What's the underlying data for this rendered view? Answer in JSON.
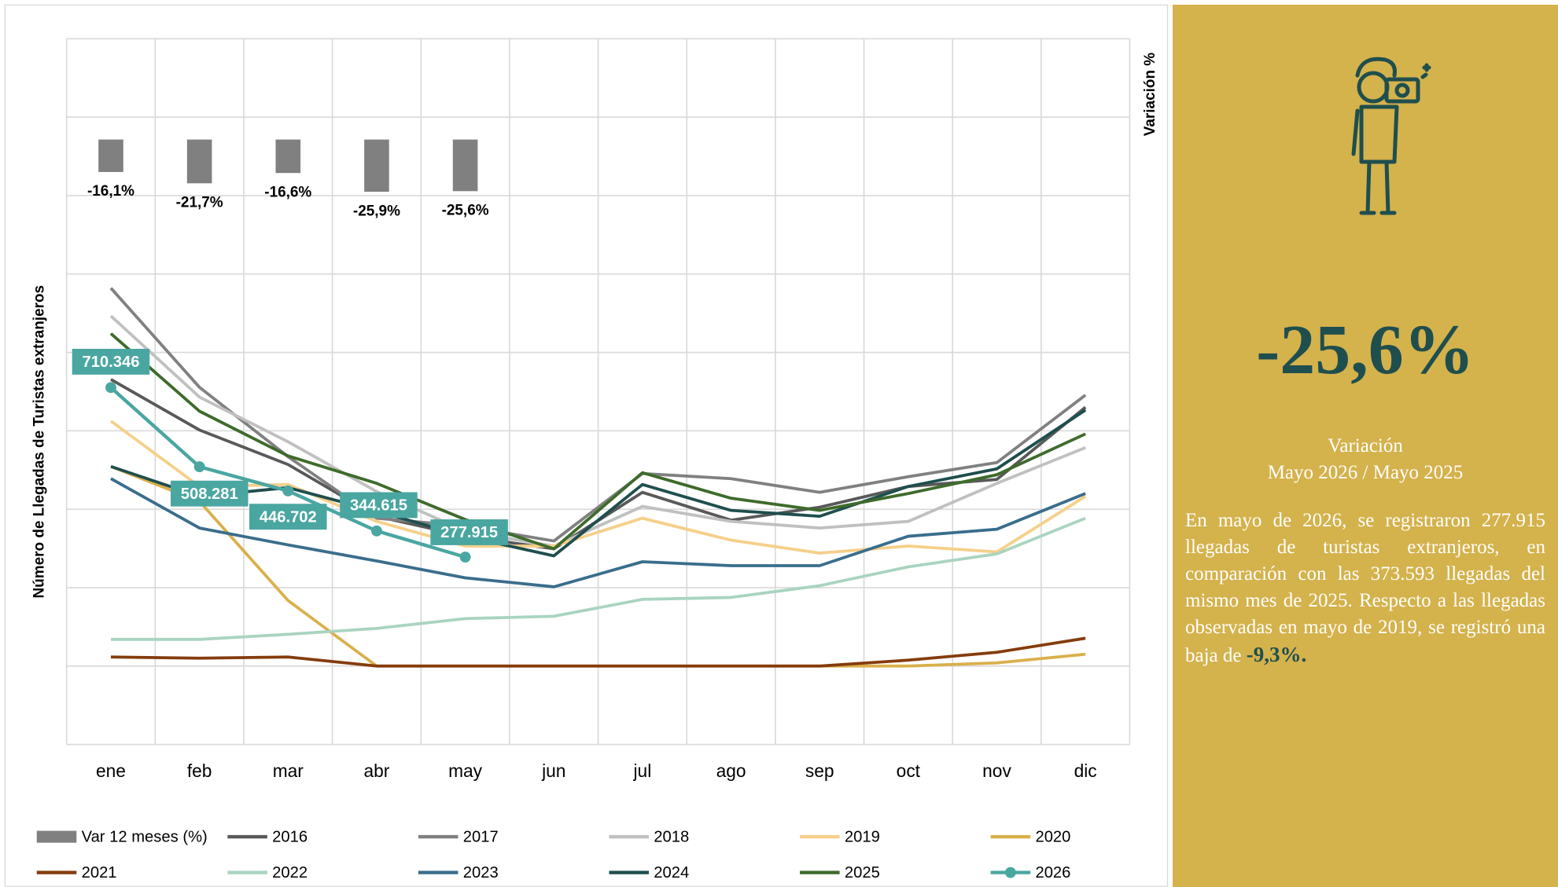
{
  "chart_data": {
    "type": "line",
    "y_label": "Número de Llegadas de Turistas extranjeros",
    "y2_label": "Variación %",
    "categories": [
      "ene",
      "feb",
      "mar",
      "abr",
      "may",
      "jun",
      "jul",
      "ago",
      "sep",
      "oct",
      "nov",
      "dic"
    ],
    "ylim": [
      -200000,
      1600000
    ],
    "yticks": [
      -200000,
      0,
      200000,
      400000,
      600000,
      800000,
      1000000,
      1200000,
      1400000,
      1600000
    ],
    "y2lim": [
      -300,
      50
    ],
    "grid": true,
    "series": [
      {
        "name": "Var 12 meses (%)",
        "type": "bar",
        "axis": "y2",
        "color": "#808080",
        "values": [
          -16.1,
          -21.7,
          -16.6,
          -25.9,
          -25.6,
          null,
          null,
          null,
          null,
          null,
          null,
          null
        ],
        "value_labels": [
          "-16,1%",
          "-21,7%",
          "-16,6%",
          "-25,9%",
          "-25,6%",
          null,
          null,
          null,
          null,
          null,
          null,
          null
        ]
      },
      {
        "name": "2016",
        "color": "#595959",
        "values": [
          731000,
          602000,
          514000,
          382000,
          331000,
          299000,
          443000,
          372000,
          405000,
          458000,
          476000,
          660000
        ]
      },
      {
        "name": "2017",
        "color": "#808080",
        "values": [
          964000,
          711000,
          534000,
          377000,
          357000,
          319000,
          491000,
          478000,
          443000,
          483000,
          519000,
          691000
        ]
      },
      {
        "name": "2018",
        "color": "#c0c0c0",
        "values": [
          893000,
          686000,
          572000,
          445000,
          344000,
          306000,
          407000,
          369000,
          352000,
          369000,
          466000,
          557000
        ]
      },
      {
        "name": "2019",
        "color": "#f5d08a",
        "values": [
          625000,
          458000,
          463000,
          369000,
          306000,
          306000,
          377000,
          321000,
          288000,
          306000,
          291000,
          433000
        ]
      },
      {
        "name": "2020",
        "color": "#d9b04a",
        "values": [
          509000,
          420000,
          167000,
          0,
          0,
          0,
          0,
          0,
          0,
          0,
          8000,
          30000
        ]
      },
      {
        "name": "2021",
        "color": "#843c0c",
        "values": [
          23000,
          20000,
          23000,
          0,
          0,
          0,
          0,
          0,
          0,
          15000,
          35000,
          71000
        ]
      },
      {
        "name": "2022",
        "color": "#a9d4c0",
        "values": [
          68000,
          68000,
          81000,
          96000,
          121000,
          127000,
          170000,
          175000,
          205000,
          253000,
          286000,
          377000
        ]
      },
      {
        "name": "2023",
        "color": "#3a6d8c",
        "values": [
          478000,
          352000,
          309000,
          268000,
          225000,
          202000,
          266000,
          256000,
          256000,
          331000,
          349000,
          440000
        ]
      },
      {
        "name": "2024",
        "color": "#1f4e4e",
        "values": [
          509000,
          433000,
          455000,
          395000,
          331000,
          281000,
          463000,
          397000,
          382000,
          458000,
          503000,
          653000
        ]
      },
      {
        "name": "2025",
        "color": "#3e6b2b",
        "values": [
          848000,
          650000,
          536000,
          466000,
          373593,
          299000,
          493000,
          428000,
          397000,
          440000,
          488000,
          592000
        ]
      },
      {
        "name": "2026",
        "color": "#4aa6a0",
        "markers": true,
        "values": [
          710346,
          508281,
          446702,
          344615,
          277915,
          null,
          null,
          null,
          null,
          null,
          null,
          null
        ],
        "value_labels": [
          "710.346",
          "508.281",
          "446.702",
          "344.615",
          "277.915",
          null,
          null,
          null,
          null,
          null,
          null,
          null
        ]
      }
    ]
  },
  "panel": {
    "headline": "-25,6%",
    "subtitle_1": "Variación",
    "subtitle_2": "Mayo 2026 / Mayo 2025",
    "text": "En mayo de 2026, se registraron 277.915 llegadas de turistas extranjeros, en comparación con las 373.593 llegadas del mismo mes de 2025. Respecto a las llegadas observadas en mayo de 2019, se registró una baja de",
    "text_bold": "-9,3%."
  }
}
